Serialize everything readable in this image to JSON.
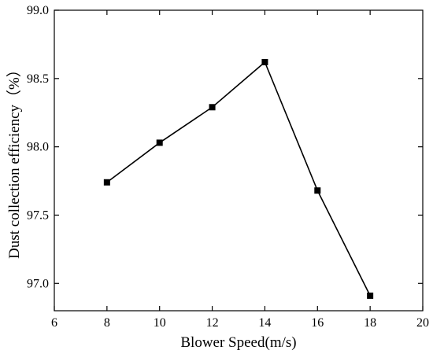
{
  "chart_data": {
    "type": "line",
    "title": "",
    "xlabel": "Blower Speed(m/s)",
    "ylabel": "Dust collection efficiency（%）",
    "xlim": [
      6,
      20
    ],
    "ylim": [
      96.8,
      99.0
    ],
    "xticks": [
      6,
      8,
      10,
      12,
      14,
      16,
      18,
      20
    ],
    "yticks": [
      97.0,
      97.5,
      98.0,
      98.5,
      99.0
    ],
    "ytick_labels": [
      "97.0",
      "97.5",
      "98.0",
      "98.5",
      "99.0"
    ],
    "grid": false,
    "legend": "none",
    "marker": "square",
    "series": [
      {
        "x": [
          8,
          10,
          12,
          14,
          16,
          18
        ],
        "values": [
          97.74,
          98.03,
          98.29,
          98.62,
          97.68,
          96.91
        ],
        "color": "#000000"
      }
    ]
  }
}
